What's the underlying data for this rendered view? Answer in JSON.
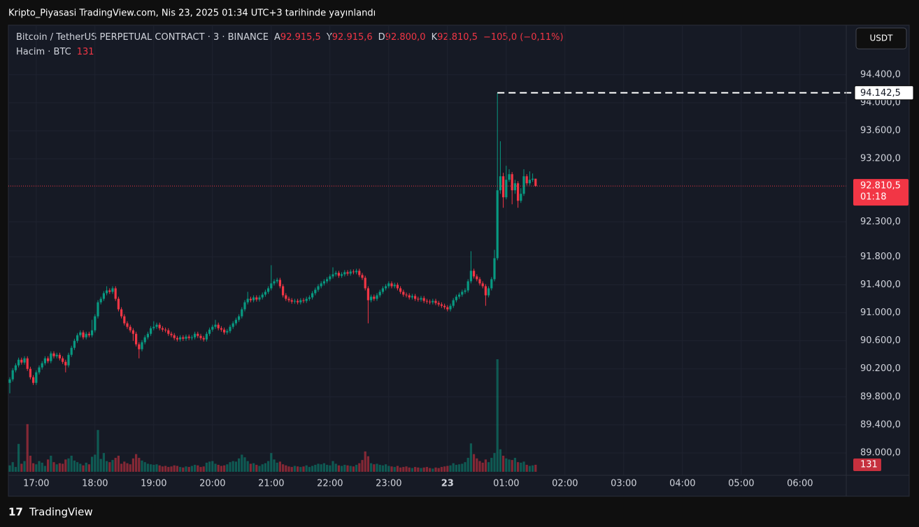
{
  "header": {
    "caption": "Kripto_Piyasasi TradingView.com, Nis 23, 2025 01:34 UTC+3 tarihinde yayınlandı",
    "footer": "TradingView",
    "currency": "USDT"
  },
  "chart_data": {
    "type": "candlestick",
    "title": "Bitcoin / TetherUS PERPETUAL CONTRACT · 3 · BINANCE",
    "legend": [
      {
        "key": "A",
        "text": "92.915,5"
      },
      {
        "key": "Y",
        "text": "92.915,6"
      },
      {
        "key": "D",
        "text": "92.800,0"
      },
      {
        "key": "K",
        "text": "92.810,5"
      }
    ],
    "change": "−105,0 (−0,11%)",
    "volume_title": "Hacim · BTC",
    "up_color": "#089981",
    "down_color": "#f23645",
    "x": [
      "16:33",
      "16:36",
      "16:39",
      "16:42",
      "16:45",
      "16:48",
      "16:51",
      "16:54",
      "16:57",
      "17:00",
      "17:03",
      "17:06",
      "17:09",
      "17:12",
      "17:15",
      "17:18",
      "17:21",
      "17:24",
      "17:27",
      "17:30",
      "17:33",
      "17:36",
      "17:39",
      "17:42",
      "17:45",
      "17:48",
      "17:51",
      "17:54",
      "17:57",
      "18:00",
      "18:03",
      "18:06",
      "18:09",
      "18:12",
      "18:15",
      "18:18",
      "18:21",
      "18:24",
      "18:27",
      "18:30",
      "18:33",
      "18:36",
      "18:39",
      "18:42",
      "18:45",
      "18:48",
      "18:51",
      "18:54",
      "18:57",
      "19:00",
      "19:03",
      "19:06",
      "19:09",
      "19:12",
      "19:15",
      "19:18",
      "19:21",
      "19:24",
      "19:27",
      "19:30",
      "19:33",
      "19:36",
      "19:39",
      "19:42",
      "19:45",
      "19:48",
      "19:51",
      "19:54",
      "19:57",
      "20:00",
      "20:03",
      "20:06",
      "20:09",
      "20:12",
      "20:15",
      "20:18",
      "20:21",
      "20:24",
      "20:27",
      "20:30",
      "20:33",
      "20:36",
      "20:39",
      "20:42",
      "20:45",
      "20:48",
      "20:51",
      "20:54",
      "20:57",
      "21:00",
      "21:03",
      "21:06",
      "21:09",
      "21:12",
      "21:15",
      "21:18",
      "21:21",
      "21:24",
      "21:27",
      "21:30",
      "21:33",
      "21:36",
      "21:39",
      "21:42",
      "21:45",
      "21:48",
      "21:51",
      "21:54",
      "21:57",
      "22:00",
      "22:03",
      "22:06",
      "22:09",
      "22:12",
      "22:15",
      "22:18",
      "22:21",
      "22:24",
      "22:27",
      "22:30",
      "22:33",
      "22:36",
      "22:39",
      "22:42",
      "22:45",
      "22:48",
      "22:51",
      "22:54",
      "22:57",
      "23:00",
      "23:03",
      "23:06",
      "23:09",
      "23:12",
      "23:15",
      "23:18",
      "23:21",
      "23:24",
      "23:27",
      "23:30",
      "23:33",
      "23:36",
      "23:39",
      "23:42",
      "23:45",
      "23:48",
      "23:51",
      "23:54",
      "23:57",
      "00:00",
      "00:03",
      "00:06",
      "00:09",
      "00:12",
      "00:15",
      "00:18",
      "00:21",
      "00:24",
      "00:27",
      "00:30",
      "00:33",
      "00:36",
      "00:39",
      "00:42",
      "00:45",
      "00:48",
      "00:51",
      "00:54",
      "00:57",
      "01:00",
      "01:03",
      "01:06",
      "01:09",
      "01:12",
      "01:15",
      "01:18",
      "01:21",
      "01:24",
      "01:27",
      "01:30"
    ],
    "open": [
      90000,
      90050,
      90180,
      90250,
      90330,
      90290,
      90350,
      90200,
      90080,
      90000,
      90150,
      90220,
      90280,
      90350,
      90310,
      90420,
      90380,
      90400,
      90350,
      90300,
      90250,
      90400,
      90500,
      90600,
      90680,
      90720,
      90650,
      90700,
      90680,
      90750,
      90950,
      91150,
      91200,
      91280,
      91320,
      91300,
      91350,
      91200,
      91050,
      90950,
      90850,
      90800,
      90750,
      90700,
      90550,
      90480,
      90580,
      90650,
      90700,
      90780,
      90800,
      90830,
      90780,
      90760,
      90750,
      90700,
      90680,
      90640,
      90620,
      90650,
      90630,
      90660,
      90640,
      90650,
      90700,
      90670,
      90640,
      90620,
      90700,
      90760,
      90800,
      90830,
      90780,
      90760,
      90720,
      90740,
      90800,
      90850,
      90900,
      90950,
      91050,
      91150,
      91200,
      91180,
      91220,
      91190,
      91220,
      91260,
      91300,
      91350,
      91420,
      91450,
      91470,
      91380,
      91250,
      91200,
      91180,
      91160,
      91170,
      91150,
      91180,
      91170,
      91200,
      91220,
      91280,
      91330,
      91380,
      91420,
      91450,
      91480,
      91520,
      91550,
      91570,
      91530,
      91550,
      91580,
      91560,
      91590,
      91580,
      91600,
      91540,
      91500,
      91350,
      91180,
      91230,
      91200,
      91250,
      91300,
      91350,
      91380,
      91420,
      91380,
      91400,
      91350,
      91300,
      91260,
      91250,
      91220,
      91240,
      91200,
      91190,
      91210,
      91170,
      91160,
      91150,
      91170,
      91140,
      91120,
      91100,
      91080,
      91050,
      91100,
      91180,
      91230,
      91260,
      91300,
      91320,
      91450,
      91600,
      91520,
      91480,
      91420,
      91380,
      91250,
      91350,
      91480,
      91780,
      92750,
      92950,
      92650,
      92900,
      92980,
      92750,
      92850,
      92600,
      92700,
      92950,
      92850,
      92900,
      92915.5
    ],
    "high": [
      90080,
      90210,
      90280,
      90360,
      90360,
      90380,
      90380,
      90230,
      90110,
      90180,
      90250,
      90310,
      90380,
      90380,
      90450,
      90450,
      90430,
      90430,
      90380,
      90330,
      90430,
      90530,
      90630,
      90710,
      90750,
      90750,
      90730,
      90730,
      90900,
      90980,
      91180,
      91230,
      91310,
      91380,
      91350,
      91380,
      91380,
      91230,
      91080,
      90980,
      90880,
      90830,
      90780,
      90730,
      90580,
      90610,
      90680,
      90730,
      90810,
      90880,
      90860,
      90860,
      90810,
      90790,
      90780,
      90730,
      90710,
      90670,
      90680,
      90680,
      90690,
      90690,
      90680,
      90730,
      90730,
      90700,
      90670,
      90730,
      90790,
      90830,
      90900,
      90860,
      90810,
      90790,
      90770,
      90830,
      90880,
      90930,
      90980,
      91080,
      91180,
      91300,
      91230,
      91250,
      91250,
      91250,
      91290,
      91330,
      91380,
      91680,
      91480,
      91500,
      91500,
      91410,
      91280,
      91230,
      91210,
      91200,
      91200,
      91210,
      91210,
      91230,
      91250,
      91310,
      91360,
      91410,
      91450,
      91480,
      91510,
      91550,
      91650,
      91600,
      91600,
      91580,
      91610,
      91610,
      91620,
      91620,
      91630,
      91630,
      91570,
      91530,
      91380,
      91260,
      91260,
      91280,
      91330,
      91380,
      91410,
      91450,
      91450,
      91430,
      91430,
      91380,
      91330,
      91290,
      91280,
      91270,
      91270,
      91230,
      91240,
      91240,
      91200,
      91190,
      91200,
      91200,
      91170,
      91150,
      91130,
      91110,
      91130,
      91210,
      91260,
      91290,
      91330,
      91350,
      91480,
      91880,
      91630,
      91550,
      91510,
      91450,
      91410,
      91380,
      91510,
      91900,
      94142.5,
      93450,
      93000,
      93100,
      93050,
      93010,
      92900,
      92880,
      92780,
      93050,
      92980,
      93020,
      92990,
      92915.6
    ],
    "low": [
      89850,
      90020,
      90150,
      90220,
      90260,
      90260,
      90170,
      90050,
      89970,
      89970,
      90120,
      90190,
      90250,
      90280,
      90280,
      90350,
      90350,
      90320,
      90270,
      90150,
      90220,
      90370,
      90470,
      90570,
      90650,
      90620,
      90620,
      90650,
      90650,
      90720,
      90920,
      91120,
      91170,
      91250,
      91270,
      91270,
      91170,
      91020,
      90920,
      90820,
      90770,
      90720,
      90600,
      90520,
      90350,
      90450,
      90550,
      90620,
      90670,
      90750,
      90770,
      90750,
      90730,
      90720,
      90670,
      90650,
      90610,
      90590,
      90590,
      90600,
      90600,
      90610,
      90610,
      90620,
      90640,
      90610,
      90590,
      90590,
      90670,
      90730,
      90770,
      90750,
      90730,
      90690,
      90690,
      90710,
      90770,
      90820,
      90870,
      90920,
      91020,
      91120,
      91150,
      91150,
      91160,
      91160,
      91190,
      91230,
      91270,
      91320,
      91390,
      91420,
      91350,
      91220,
      91170,
      91150,
      91130,
      91130,
      91120,
      91120,
      91140,
      91140,
      91170,
      91190,
      91250,
      91300,
      91350,
      91390,
      91420,
      91450,
      91490,
      91520,
      91500,
      91500,
      91520,
      91530,
      91530,
      91550,
      91550,
      91510,
      91470,
      91320,
      90850,
      91150,
      91170,
      91170,
      91220,
      91270,
      91320,
      91350,
      91350,
      91350,
      91320,
      91270,
      91230,
      91220,
      91190,
      91190,
      91170,
      91160,
      91160,
      91140,
      91130,
      91120,
      91120,
      91110,
      91090,
      91070,
      91050,
      91020,
      91020,
      91070,
      91150,
      91200,
      91230,
      91270,
      91290,
      91420,
      91490,
      91450,
      91390,
      91350,
      91100,
      91220,
      91320,
      91450,
      91750,
      92700,
      92500,
      92620,
      92870,
      92550,
      92700,
      92500,
      92570,
      92670,
      92820,
      92820,
      92870,
      92800
    ],
    "close": [
      90050,
      90180,
      90250,
      90330,
      90290,
      90350,
      90200,
      90080,
      90000,
      90150,
      90220,
      90280,
      90350,
      90310,
      90420,
      90380,
      90400,
      90350,
      90300,
      90250,
      90400,
      90500,
      90600,
      90680,
      90720,
      90650,
      90700,
      90680,
      90750,
      90950,
      91150,
      91200,
      91280,
      91320,
      91300,
      91350,
      91200,
      91050,
      90950,
      90850,
      90800,
      90750,
      90700,
      90550,
      90480,
      90580,
      90650,
      90700,
      90780,
      90800,
      90830,
      90780,
      90760,
      90750,
      90700,
      90680,
      90640,
      90620,
      90650,
      90630,
      90660,
      90640,
      90650,
      90700,
      90670,
      90640,
      90620,
      90700,
      90760,
      90800,
      90830,
      90780,
      90760,
      90720,
      90740,
      90800,
      90850,
      90900,
      90950,
      91050,
      91150,
      91200,
      91180,
      91220,
      91190,
      91220,
      91260,
      91300,
      91350,
      91420,
      91450,
      91470,
      91380,
      91250,
      91200,
      91180,
      91160,
      91170,
      91150,
      91180,
      91170,
      91200,
      91220,
      91280,
      91330,
      91380,
      91420,
      91450,
      91480,
      91520,
      91550,
      91570,
      91530,
      91550,
      91580,
      91560,
      91590,
      91580,
      91600,
      91540,
      91500,
      91350,
      91180,
      91230,
      91200,
      91250,
      91300,
      91350,
      91380,
      91420,
      91380,
      91400,
      91350,
      91300,
      91260,
      91250,
      91220,
      91240,
      91200,
      91190,
      91210,
      91170,
      91160,
      91150,
      91170,
      91140,
      91120,
      91100,
      91080,
      91050,
      91100,
      91180,
      91230,
      91260,
      91300,
      91320,
      91450,
      91600,
      91520,
      91480,
      91420,
      91380,
      91250,
      91350,
      91480,
      91780,
      92750,
      92950,
      92650,
      92900,
      92980,
      92750,
      92850,
      92600,
      92700,
      92950,
      92850,
      92900,
      92915.5,
      92810.5
    ],
    "volume": {
      "ylim": [
        0,
        8400
      ],
      "values": [
        120,
        180,
        90,
        520,
        150,
        200,
        890,
        300,
        160,
        140,
        200,
        170,
        110,
        230,
        300,
        180,
        140,
        160,
        150,
        230,
        250,
        300,
        210,
        180,
        150,
        120,
        170,
        140,
        280,
        320,
        780,
        240,
        350,
        200,
        180,
        220,
        260,
        300,
        150,
        190,
        160,
        140,
        250,
        330,
        260,
        210,
        180,
        150,
        140,
        130,
        140,
        120,
        100,
        110,
        90,
        100,
        120,
        110,
        90,
        80,
        100,
        90,
        110,
        130,
        120,
        90,
        100,
        170,
        190,
        200,
        150,
        130,
        110,
        120,
        140,
        180,
        200,
        190,
        250,
        320,
        270,
        200,
        150,
        160,
        130,
        110,
        140,
        160,
        200,
        350,
        230,
        170,
        190,
        140,
        120,
        100,
        90,
        110,
        100,
        90,
        100,
        120,
        90,
        110,
        130,
        150,
        140,
        160,
        130,
        120,
        200,
        150,
        120,
        110,
        130,
        120,
        110,
        100,
        130,
        160,
        220,
        380,
        290,
        160,
        140,
        150,
        130,
        120,
        140,
        110,
        100,
        90,
        110,
        80,
        90,
        100,
        80,
        70,
        90,
        80,
        70,
        80,
        90,
        70,
        60,
        80,
        70,
        90,
        100,
        110,
        120,
        160,
        130,
        140,
        150,
        180,
        260,
        530,
        330,
        250,
        200,
        170,
        230,
        180,
        260,
        350,
        2100,
        420,
        300,
        250,
        230,
        220,
        260,
        180,
        170,
        190,
        130,
        110,
        120,
        131
      ]
    },
    "ylim": [
      88680,
      95108
    ],
    "yticks": [
      {
        "value": 89000,
        "label": "89.000,0"
      },
      {
        "value": 89400,
        "label": "89.400,0"
      },
      {
        "value": 89800,
        "label": "89.800,0"
      },
      {
        "value": 90200,
        "label": "90.200,0"
      },
      {
        "value": 90600,
        "label": "90.600,0"
      },
      {
        "value": 91000,
        "label": "91.000,0"
      },
      {
        "value": 91400,
        "label": "91.400,0"
      },
      {
        "value": 91800,
        "label": "91.800,0"
      },
      {
        "value": 92300,
        "label": "92.300,0"
      },
      {
        "value": 93200,
        "label": "93.200,0"
      },
      {
        "value": 93600,
        "label": "93.600,0"
      },
      {
        "value": 94000,
        "label": "94.000,0"
      },
      {
        "value": 94400,
        "label": "94.400,0"
      }
    ],
    "xticks": [
      "17:00",
      "18:00",
      "19:00",
      "20:00",
      "21:00",
      "22:00",
      "23:00",
      {
        "value": "00:00",
        "label": "23"
      },
      "01:00",
      "02:00",
      "03:00",
      "04:00",
      "05:00",
      "06:00"
    ],
    "grid": true,
    "price_line": {
      "value": 92810.5,
      "label": "92.810,5",
      "countdown": "01:18"
    },
    "high_line": {
      "value": 94142.5,
      "label": "94.142,5"
    }
  }
}
